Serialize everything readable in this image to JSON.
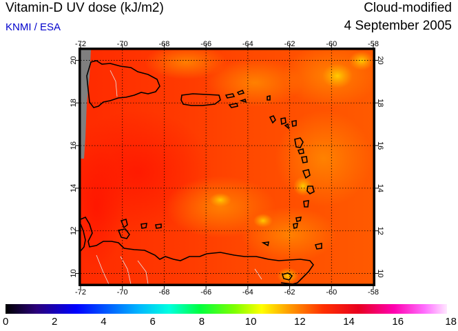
{
  "header": {
    "title": "Vitamin-D UV dose (kJ/m2)",
    "credit": "KNMI / ESA",
    "type": "Cloud-modified",
    "date": "4 September 2005"
  },
  "map": {
    "lon_ticks": [
      "-72",
      "-70",
      "-68",
      "-66",
      "-64",
      "-62",
      "-60",
      "-58"
    ],
    "lat_ticks": [
      "20",
      "18",
      "16",
      "14",
      "12",
      "10"
    ]
  },
  "colorbar": {
    "labels": [
      "0",
      "2",
      "4",
      "6",
      "8",
      "10",
      "12",
      "14",
      "16",
      "18"
    ],
    "colors": [
      "#000000",
      "#2a007a",
      "#0000ff",
      "#00a0ff",
      "#00ffff",
      "#00ff80",
      "#40ff00",
      "#c0ff00",
      "#ffff00",
      "#ffa000",
      "#ff5000",
      "#ff0000",
      "#e00040",
      "#ff00a0",
      "#ff60ff",
      "#ffe0ff"
    ]
  }
}
